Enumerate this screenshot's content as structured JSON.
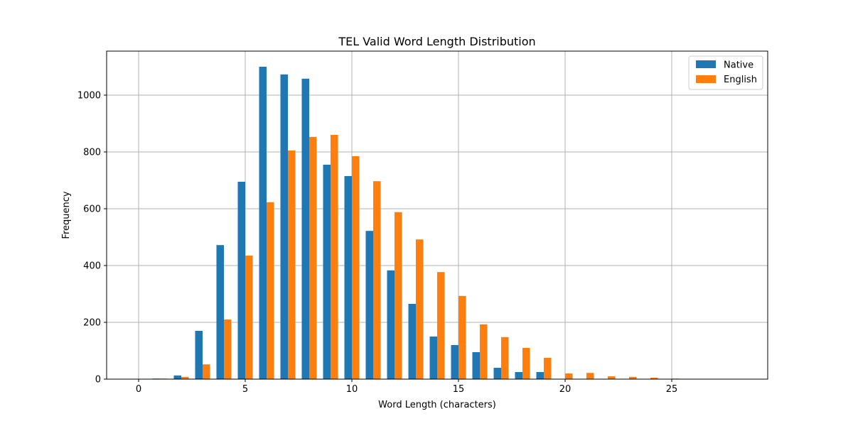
{
  "chart_data": {
    "type": "bar",
    "title": "TEL Valid Word Length Distribution",
    "xlabel": "Word Length (characters)",
    "ylabel": "Frequency",
    "x": [
      1,
      2,
      3,
      4,
      5,
      6,
      7,
      8,
      9,
      10,
      11,
      12,
      13,
      14,
      15,
      16,
      17,
      18,
      19,
      20,
      21,
      22,
      23,
      24,
      25
    ],
    "series": [
      {
        "name": "Native",
        "color": "#1f77b4",
        "values": [
          2,
          13,
          170,
          472,
          695,
          1100,
          1073,
          1058,
          755,
          715,
          522,
          383,
          265,
          150,
          120,
          95,
          40,
          25,
          25,
          0,
          0,
          0,
          0,
          0,
          0
        ]
      },
      {
        "name": "English",
        "color": "#ff7f0e",
        "values": [
          2,
          8,
          52,
          210,
          435,
          623,
          805,
          853,
          860,
          785,
          697,
          588,
          492,
          377,
          293,
          193,
          148,
          110,
          75,
          20,
          22,
          10,
          8,
          5,
          2
        ]
      }
    ],
    "xlim": [
      -1.5,
      29.5
    ],
    "ylim": [
      0,
      1155
    ],
    "xticks": [
      0,
      5,
      10,
      15,
      20,
      25
    ],
    "yticks": [
      0,
      200,
      400,
      600,
      800,
      1000
    ],
    "grid": true,
    "legend_position": "top-right"
  }
}
